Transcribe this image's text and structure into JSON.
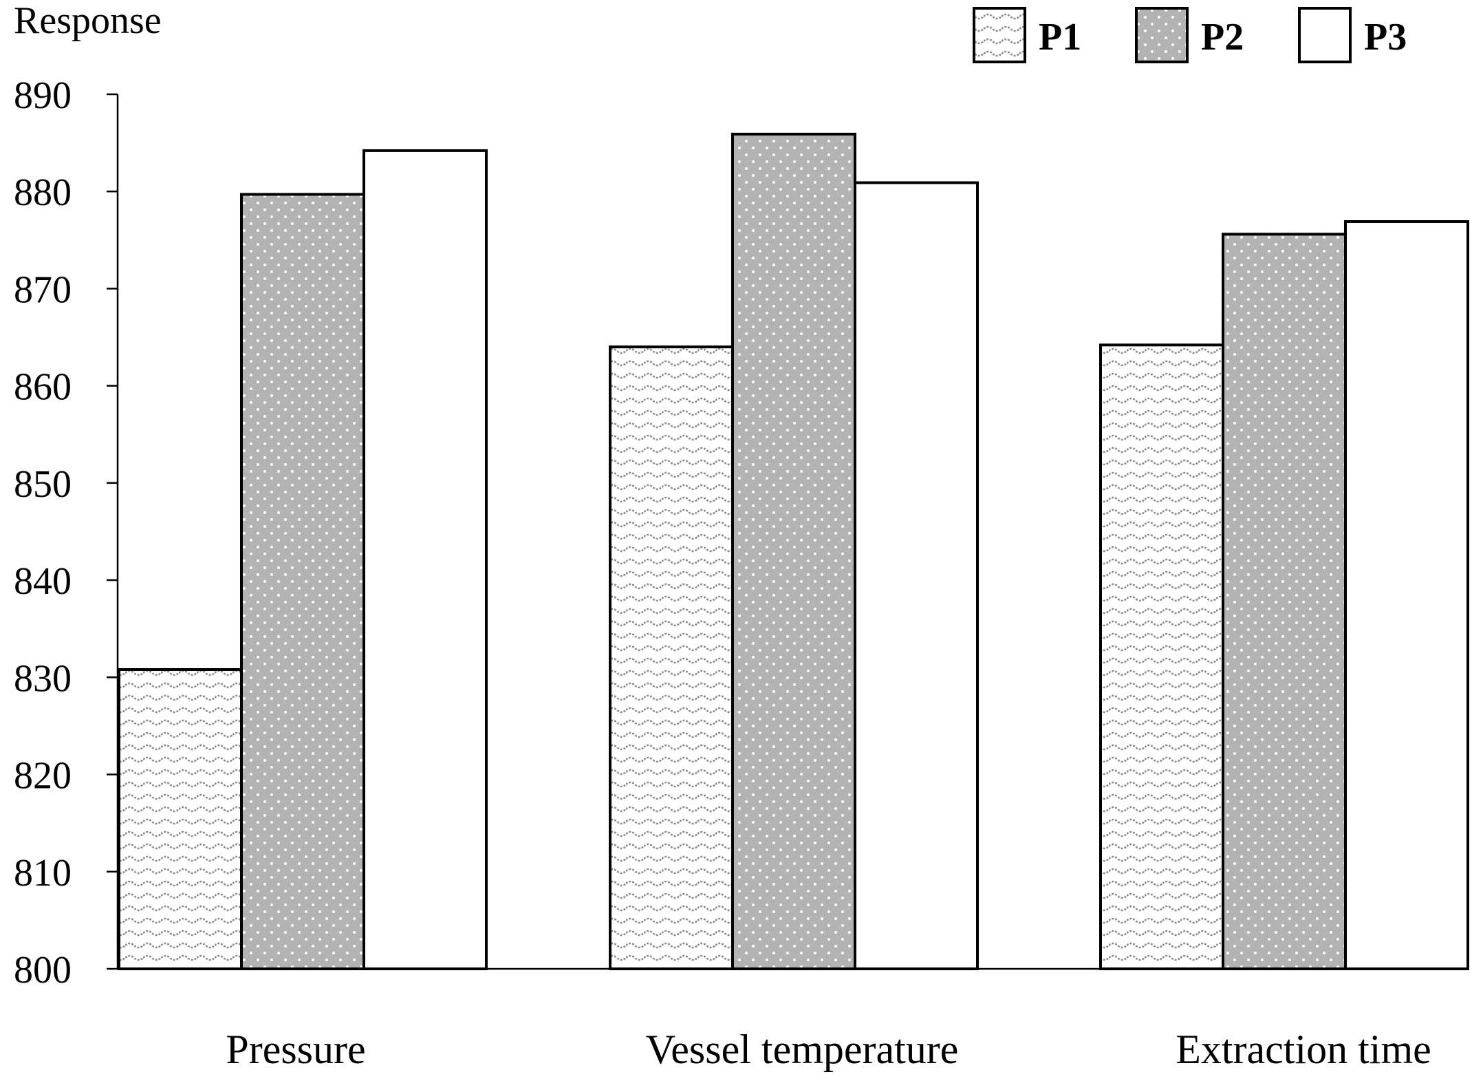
{
  "chart_data": {
    "type": "bar",
    "title": "",
    "xlabel": "",
    "ylabel": "Response",
    "ylim": [
      800,
      890
    ],
    "yticks": [
      800,
      810,
      820,
      830,
      840,
      850,
      860,
      870,
      880,
      890
    ],
    "grid": false,
    "legend_position": "top-right",
    "categories": [
      "Pressure",
      "Vessel temperature",
      "Extraction time"
    ],
    "series": [
      {
        "name": "P1",
        "pattern": "wave",
        "values": [
          830.8,
          864.0,
          864.2
        ]
      },
      {
        "name": "P2",
        "pattern": "dots",
        "values": [
          879.7,
          885.9,
          875.6
        ]
      },
      {
        "name": "P3",
        "pattern": "white",
        "values": [
          884.2,
          880.9,
          876.9
        ]
      }
    ],
    "colors": {
      "p2_fill": "#b3b3b3",
      "p1_wave": "#8c8c8c",
      "outline": "#000000"
    }
  }
}
